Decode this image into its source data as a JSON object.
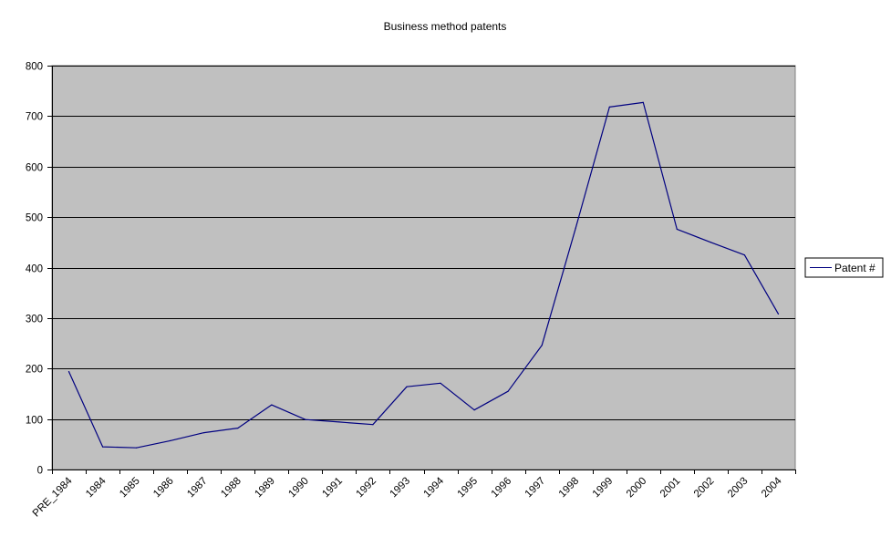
{
  "chart_data": {
    "type": "line",
    "title": "Business method patents",
    "xlabel": "",
    "ylabel": "",
    "categories": [
      "PRE_1984",
      "1984",
      "1985",
      "1986",
      "1987",
      "1988",
      "1989",
      "1990",
      "1991",
      "1992",
      "1993",
      "1994",
      "1995",
      "1996",
      "1997",
      "1998",
      "1999",
      "2000",
      "2001",
      "2002",
      "2003",
      "2004"
    ],
    "series": [
      {
        "name": "Patent #",
        "color": "#000080",
        "values": [
          194,
          45,
          43,
          57,
          73,
          82,
          128,
          99,
          94,
          89,
          164,
          171,
          118,
          155,
          246,
          478,
          718,
          727,
          476,
          450,
          425,
          308
        ]
      }
    ],
    "ylim": [
      0,
      800
    ],
    "yticks": [
      0,
      100,
      200,
      300,
      400,
      500,
      600,
      700,
      800
    ],
    "grid": true,
    "legend": "right",
    "plot_background": "#c0c0c0",
    "gridline_color": "#000000"
  }
}
